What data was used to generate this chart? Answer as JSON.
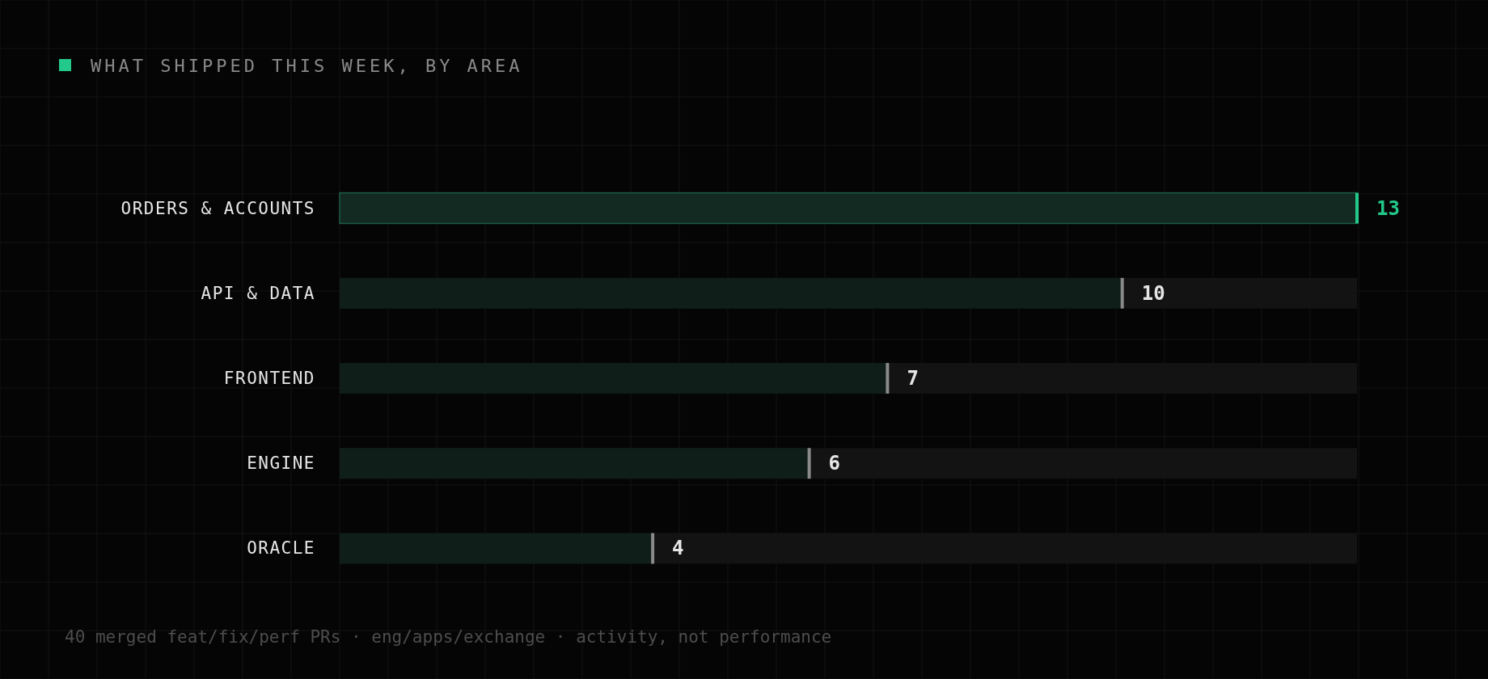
{
  "chart_data": {
    "type": "bar",
    "orientation": "horizontal",
    "title": "WHAT SHIPPED THIS WEEK, BY AREA",
    "categories": [
      "ORDERS & ACCOUNTS",
      "API & DATA",
      "FRONTEND",
      "ENGINE",
      "ORACLE"
    ],
    "values": [
      13,
      10,
      7,
      6,
      4
    ],
    "colors": [
      "#122a21",
      "#0f1e19",
      "#0f1e19",
      "#0f1e19",
      "#0f1e19"
    ],
    "data_labels": true,
    "annotations": [
      "40 merged feat/fix/perf PRs · eng/apps/exchange · activity, not performance"
    ]
  }
}
